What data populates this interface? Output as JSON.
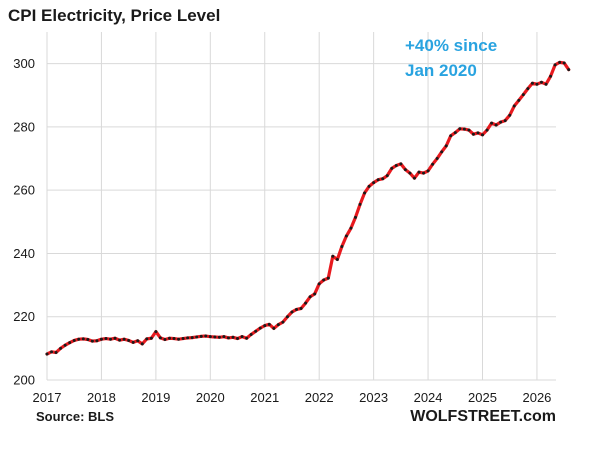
{
  "chart_data": {
    "type": "line",
    "title": "CPI Electricity, Price Level",
    "xlabel": "",
    "ylabel": "",
    "xlim": [
      2017.0,
      2026.35
    ],
    "ylim": [
      200,
      310
    ],
    "x_ticks": [
      "2017",
      "2018",
      "2019",
      "2020",
      "2021",
      "2022",
      "2023",
      "2024",
      "2025",
      "2026"
    ],
    "y_ticks": [
      "200",
      "220",
      "240",
      "260",
      "280",
      "300"
    ],
    "grid": true,
    "annotation": [
      "+40% since",
      "Jan 2020"
    ],
    "series": [
      {
        "color": "#e8191e",
        "marker_color": "#1a1a1a",
        "start": "2017-01",
        "frequency": "monthly",
        "values": [
          208.2,
          208.9,
          208.7,
          210.0,
          211.0,
          211.8,
          212.5,
          212.9,
          213.0,
          212.8,
          212.3,
          212.4,
          212.9,
          213.1,
          212.9,
          213.2,
          212.6,
          212.9,
          212.5,
          211.9,
          212.4,
          211.4,
          213.0,
          213.2,
          215.3,
          213.3,
          212.8,
          213.2,
          213.1,
          212.9,
          213.1,
          213.3,
          213.4,
          213.6,
          213.8,
          213.9,
          213.7,
          213.6,
          213.5,
          213.7,
          213.3,
          213.5,
          213.1,
          213.7,
          213.2,
          214.4,
          215.4,
          216.4,
          217.2,
          217.6,
          216.3,
          217.5,
          218.3,
          220.0,
          221.5,
          222.3,
          222.6,
          224.3,
          226.3,
          227.2,
          230.4,
          231.6,
          232.2,
          239.1,
          238.1,
          242.2,
          245.5,
          248.0,
          251.4,
          255.5,
          259.1,
          261.2,
          262.4,
          263.3,
          263.6,
          264.6,
          266.9,
          267.8,
          268.3,
          266.5,
          265.4,
          263.8,
          265.7,
          265.4,
          266.1,
          268.2,
          270.0,
          272.1,
          274.0,
          277.2,
          278.2,
          279.4,
          279.3,
          279.0,
          277.7,
          278.1,
          277.5,
          279.0,
          281.2,
          280.6,
          281.5,
          282.0,
          283.7,
          286.6,
          288.4,
          290.2,
          292.1,
          293.8,
          293.5,
          294.1,
          293.5,
          296.0,
          299.6,
          300.4,
          300.2,
          298.1
        ]
      }
    ]
  },
  "footer": {
    "source": "Source: BLS",
    "brand": "WOLFSTREET.com"
  }
}
